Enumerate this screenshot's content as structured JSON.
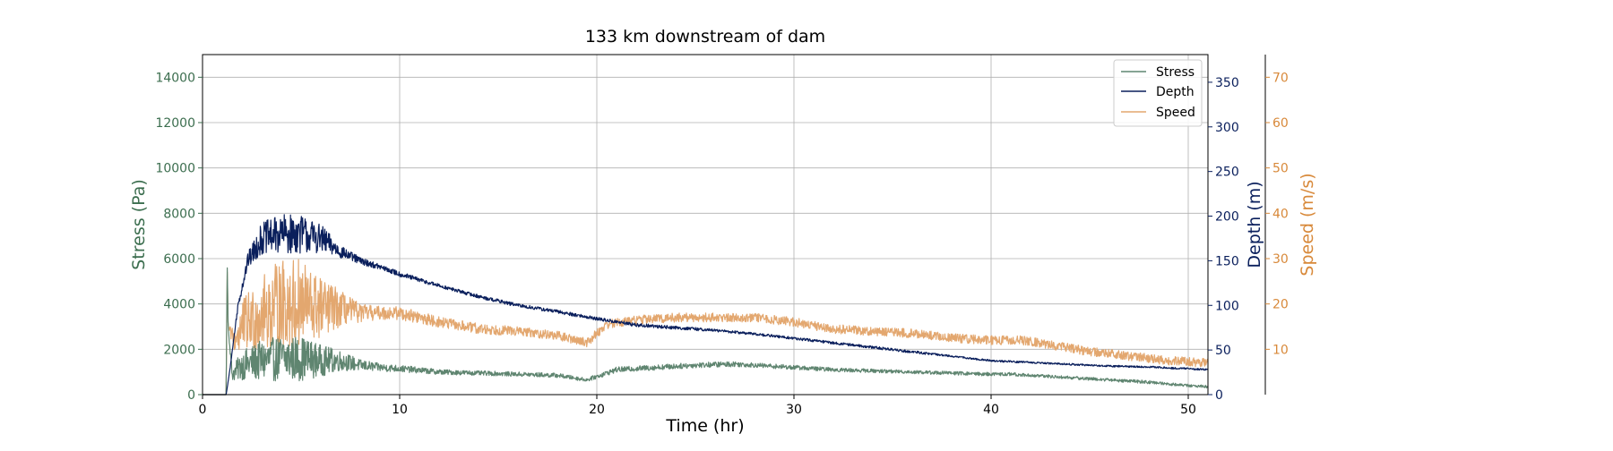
{
  "chart_data": {
    "type": "line",
    "title": "133 km downstream of dam",
    "xlabel": "Time (hr)",
    "xlim": [
      0,
      51
    ],
    "xticks": [
      0,
      10,
      20,
      30,
      40,
      50
    ],
    "grid": true,
    "legend_position": "top-right",
    "axes": {
      "stress": {
        "label": "Stress (Pa)",
        "color": "#3c6e4f",
        "side": "left",
        "ylim": [
          0,
          15000
        ],
        "ticks": [
          0,
          2000,
          4000,
          6000,
          8000,
          10000,
          12000,
          14000
        ]
      },
      "depth": {
        "label": "Depth (m)",
        "color": "#0a1f5c",
        "side": "right",
        "ylim": [
          0,
          381
        ],
        "ticks": [
          0,
          50,
          100,
          150,
          200,
          250,
          300,
          350
        ]
      },
      "speed": {
        "label": "Speed (m/s)",
        "color": "#d8893a",
        "side": "right-outer",
        "ylim": [
          0,
          75
        ],
        "ticks": [
          10,
          20,
          30,
          40,
          50,
          60,
          70
        ]
      }
    },
    "series": [
      {
        "name": "Stress",
        "axis": "stress",
        "color": "#5f8570",
        "x": [
          0,
          1.2,
          1.25,
          1.3,
          1.5,
          2,
          3,
          4,
          5,
          6,
          7,
          8,
          9,
          10,
          12,
          14,
          16,
          18,
          19.5,
          20,
          21,
          23,
          25,
          27,
          28,
          30,
          32,
          34,
          36,
          38,
          40,
          41,
          42,
          44,
          46,
          48,
          50,
          51
        ],
        "y": [
          0,
          0,
          5800,
          3000,
          900,
          1300,
          1500,
          1600,
          1600,
          1500,
          1500,
          1300,
          1200,
          1150,
          1000,
          950,
          900,
          850,
          650,
          800,
          1100,
          1200,
          1300,
          1350,
          1300,
          1200,
          1100,
          1050,
          1000,
          950,
          900,
          900,
          850,
          750,
          650,
          550,
          400,
          350
        ],
        "noise": [
          0,
          0,
          0,
          0,
          300,
          650,
          900,
          1000,
          1000,
          700,
          450,
          250,
          180,
          150,
          120,
          100,
          100,
          100,
          80,
          100,
          120,
          120,
          120,
          120,
          100,
          100,
          90,
          80,
          80,
          80,
          80,
          80,
          70,
          70,
          70,
          70,
          60,
          60
        ]
      },
      {
        "name": "Depth",
        "axis": "depth",
        "color": "#0a1f5c",
        "x": [
          0,
          1.2,
          1.4,
          1.8,
          2.3,
          3,
          4,
          5,
          6,
          7,
          8,
          9,
          10,
          12,
          14,
          16,
          18,
          20,
          22,
          24,
          26,
          28,
          30,
          32,
          34,
          36,
          38,
          40,
          42,
          44,
          46,
          48,
          50,
          51
        ],
        "y": [
          0,
          0,
          30,
          100,
          150,
          175,
          180,
          180,
          175,
          160,
          150,
          143,
          135,
          122,
          110,
          100,
          93,
          85,
          78,
          75,
          72,
          68,
          63,
          58,
          53,
          48,
          43,
          38,
          36,
          34,
          32,
          31,
          29,
          28
        ],
        "noise": [
          0,
          0,
          0,
          4,
          9,
          18,
          22,
          22,
          16,
          7,
          4,
          3,
          3,
          2,
          2,
          2,
          2,
          2,
          2,
          2,
          1.5,
          1.5,
          1.5,
          1.5,
          1.5,
          1.5,
          1,
          1,
          1,
          1,
          1,
          1,
          1,
          1
        ]
      },
      {
        "name": "Speed",
        "axis": "speed",
        "color": "#e3a76f",
        "x": [
          0,
          1.2,
          1.25,
          1.3,
          1.6,
          2,
          3,
          4,
          5,
          6,
          7,
          8,
          9,
          10,
          12,
          14,
          16,
          18,
          19.5,
          20.5,
          22,
          24,
          26,
          28,
          30,
          32,
          34,
          36,
          38,
          40,
          41.5,
          43,
          45,
          47,
          49,
          51
        ],
        "y": [
          0,
          0,
          28,
          15,
          12,
          15,
          18,
          20,
          20,
          19,
          19,
          18,
          18,
          18,
          16,
          14.5,
          14,
          13,
          11.5,
          15.5,
          16.5,
          17,
          17,
          17,
          16,
          14.5,
          14,
          13.5,
          12.5,
          12,
          12,
          11,
          9.5,
          8.5,
          7.5,
          7
        ],
        "noise": [
          0,
          0,
          0,
          0,
          3,
          6,
          8,
          10,
          10,
          7,
          4,
          2,
          1.5,
          1.5,
          1.2,
          1.2,
          1,
          1,
          1,
          1,
          1,
          1,
          1,
          1,
          1,
          1,
          1,
          1,
          1,
          1,
          1,
          1,
          1,
          1,
          1,
          1
        ]
      }
    ]
  }
}
